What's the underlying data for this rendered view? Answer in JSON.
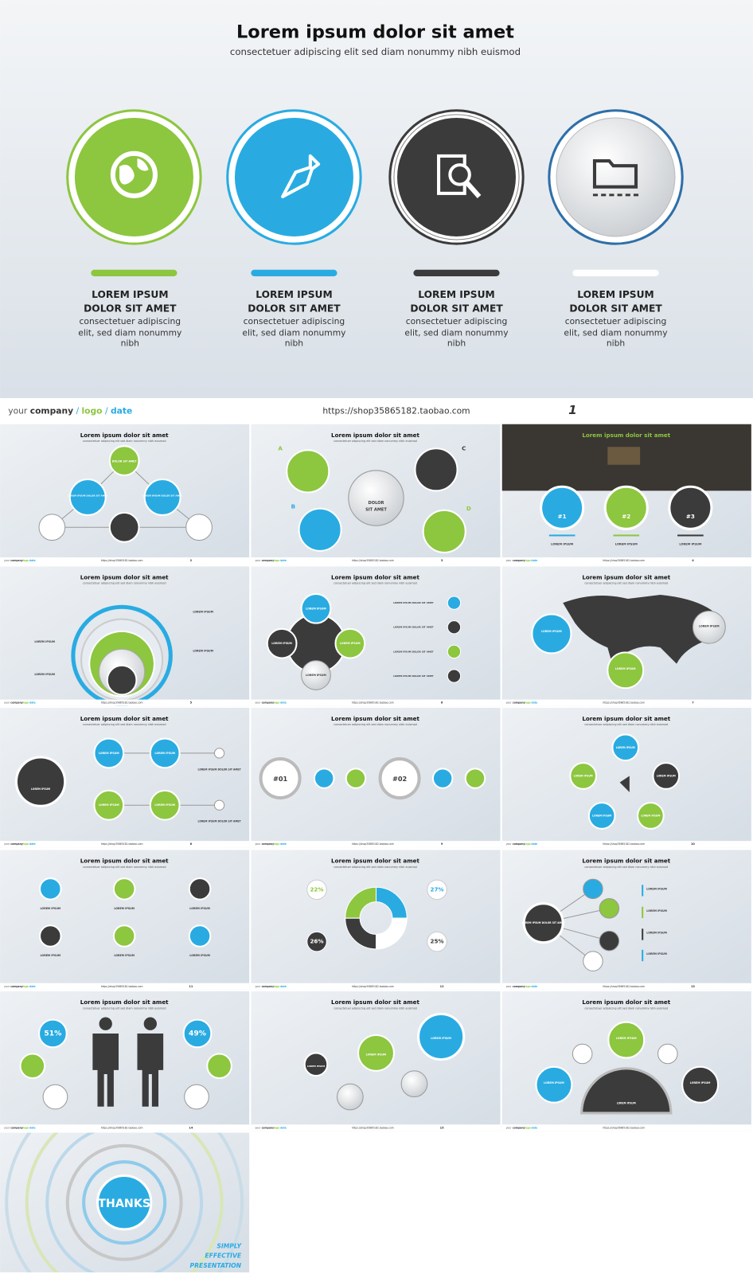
{
  "main_slide": {
    "title": "Lorem ipsum dolor sit amet",
    "subtitle": "consectetuer adipiscing elit  sed diam nonummy nibh euismod",
    "items": [
      {
        "heading": [
          "LOREM IPSUM",
          "DOLOR SIT AMET"
        ],
        "text": [
          "consectetuer adipiscing",
          "elit, sed diam nonummy",
          "nibh"
        ]
      },
      {
        "heading": [
          "LOREM IPSUM",
          "DOLOR SIT AMET"
        ],
        "text": [
          "consectetuer adipiscing",
          "elit, sed diam nonummy",
          "nibh"
        ]
      },
      {
        "heading": [
          "LOREM IPSUM",
          "DOLOR SIT AMET"
        ],
        "text": [
          "consectetuer adipiscing",
          "elit, sed diam nonummy",
          "nibh"
        ]
      },
      {
        "heading": [
          "LOREM IPSUM",
          "DOLOR SIT AMET"
        ],
        "text": [
          "consectetuer adipiscing",
          "elit, sed diam nonummy",
          "nibh"
        ]
      }
    ]
  },
  "footer": {
    "prefix": "your",
    "company": "company",
    "separator": "/",
    "logo": "logo",
    "date": "date",
    "url": "https://shop35865182.taobao.com",
    "page": "1"
  },
  "thumbnails": [
    {
      "title": "Lorem ipsum dolor sit amet",
      "subtitle": "consectetuer adipiscing elit sed diam nonummy nibh euismod",
      "page": "2",
      "labels": [
        "DOLOR SIT AMET",
        "LOREM IPSUM DOLOR SIT AMET",
        "LOREM IPSUM DOLOR SIT AMET"
      ]
    },
    {
      "title": "Lorem ipsum dolor sit amet",
      "subtitle": "consectetuer adipiscing elit sed diam nonummy nibh euismod",
      "page": "3",
      "labels": [
        "A",
        "B",
        "C",
        "D",
        "DOLOR",
        "SIT AMET"
      ]
    },
    {
      "title": "Lorem ipsum dolor sit amet",
      "page": "4",
      "labels": [
        "#1",
        "#2",
        "#3",
        "LOREM IPSUM",
        "LOREM IPSUM",
        "LOREM IPSUM"
      ]
    },
    {
      "title": "Lorem ipsum dolor sit amet",
      "subtitle": "consectetuer adipiscing elit sed diam nonummy nibh euismod",
      "page": "5",
      "labels": [
        "LOREM IPSUM",
        "LOREM IPSUM",
        "LOREM IPSUM",
        "LOREM IPSUM"
      ]
    },
    {
      "title": "Lorem ipsum dolor sit amet",
      "subtitle": "consectetuer adipiscing elit sed diam nonummy nibh euismod",
      "page": "6",
      "labels": [
        "LOREM IPSUM",
        "LOREM IPSUM",
        "LOREM IPSUM",
        "LOREM IPSUM",
        "LOREM IPSUM DOLOR SIT AMET",
        "LOREM IPSUM DOLOR SIT AMET",
        "LOREM IPSUM DOLOR SIT AMET",
        "LOREM IPSUM DOLOR SIT AMET"
      ]
    },
    {
      "title": "Lorem ipsum dolor sit amet",
      "subtitle": "consectetuer adipiscing elit sed diam nonummy nibh euismod",
      "page": "7",
      "labels": [
        "LOREM IPSUM",
        "LOREM IPSUM",
        "LOREM IPSUM"
      ]
    },
    {
      "title": "Lorem ipsum dolor sit amet",
      "subtitle": "consectetuer adipiscing elit sed diam nonummy nibh euismod",
      "page": "8",
      "labels": [
        "LOREM IPSUM",
        "LOREM IPSUM",
        "LOREM IPSUM",
        "LOREM IPSUM",
        "LOREM IPSUM",
        "LOREM IPSUM DOLOR SIT AMET",
        "LOREM IPSUM DOLOR SIT AMET"
      ]
    },
    {
      "title": "Lorem ipsum dolor sit amet",
      "subtitle": "consectetuer adipiscing elit sed diam nonummy nibh euismod",
      "page": "9",
      "labels": [
        "#01",
        "#02"
      ]
    },
    {
      "title": "Lorem ipsum dolor sit amet",
      "subtitle": "consectetuer adipiscing elit sed diam nonummy nibh euismod",
      "page": "10",
      "labels": [
        "LOREM IPSUM",
        "LOREM IPSUM",
        "LOREM IPSUM",
        "LOREM IPSUM",
        "LOREM IPSUM"
      ]
    },
    {
      "title": "Lorem ipsum dolor sit amet",
      "subtitle": "consectetuer adipiscing elit sed diam nonummy nibh euismod",
      "page": "11",
      "labels": [
        "LOREM IPSUM",
        "LOREM IPSUM",
        "LOREM IPSUM",
        "LOREM IPSUM",
        "LOREM IPSUM",
        "LOREM IPSUM"
      ]
    },
    {
      "title": "Lorem ipsum dolor sit amet",
      "subtitle": "consectetuer adipiscing elit sed diam nonummy nibh euismod",
      "page": "12",
      "labels": [
        "22%",
        "27%",
        "26%",
        "25%"
      ]
    },
    {
      "title": "Lorem ipsum dolor sit amet",
      "subtitle": "consectetuer adipiscing elit sed diam nonummy nibh euismod",
      "page": "13",
      "labels": [
        "LOREM IPSUM",
        "LOREM IPSUM",
        "LOREM IPSUM",
        "LOREM IPSUM",
        "LOREM IPSUM DOLOR SIT AMET"
      ]
    },
    {
      "title": "Lorem ipsum dolor sit amet",
      "subtitle": "consectetuer adipiscing elit sed diam nonummy nibh euismod",
      "page": "14",
      "labels": [
        "51%",
        "49%"
      ]
    },
    {
      "title": "Lorem ipsum dolor sit amet",
      "subtitle": "consectetuer adipiscing elit sed diam nonummy nibh euismod",
      "page": "15",
      "labels": [
        "LOREM IPSUM",
        "LOREM IPSUM",
        "LOREM IPSUM"
      ]
    },
    {
      "title": "Lorem ipsum dolor sit amet",
      "subtitle": "consectetuer adipiscing elit sed diam nonummy nibh euismod",
      "labels": [
        "LOREM IPSUM",
        "LOREM IPSUM",
        "LOREM IPSUM",
        "LOREM IPSUM"
      ]
    },
    {
      "labels": [
        "THANKS",
        "SIMPLY",
        "EFFECTIVE",
        "PRESENTATION"
      ]
    }
  ]
}
